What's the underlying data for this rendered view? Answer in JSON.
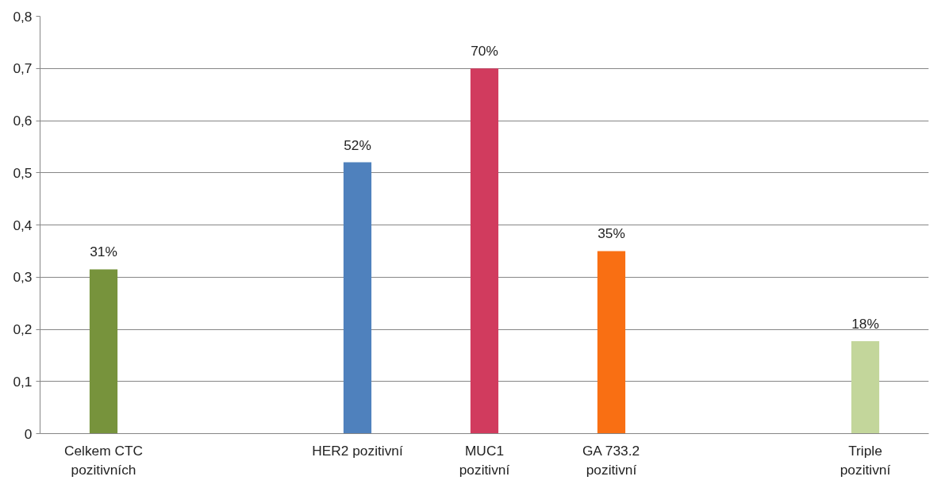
{
  "chart_data": {
    "type": "bar",
    "categories": [
      "Celkem CTC\npozitivních",
      null,
      "HER2 pozitivní",
      "MUC1\npozitivní",
      "GA 733.2\npozitivní",
      null,
      "Triple\npozitivní"
    ],
    "values": [
      0.315,
      null,
      0.52,
      0.7,
      0.35,
      null,
      0.177
    ],
    "colors": [
      "#77933c",
      "#4f81bd",
      "#4f81bd",
      "#d13b5e",
      "#f96f13",
      "#f96f13",
      "#c3d69b"
    ],
    "value_labels": [
      "31%",
      null,
      "52%",
      "70%",
      "35%",
      null,
      "18%"
    ],
    "ylim": [
      0,
      0.8
    ],
    "yticks": [
      {
        "value": 0,
        "label": "0"
      },
      {
        "value": 0.1,
        "label": "0,1"
      },
      {
        "value": 0.2,
        "label": "0,2"
      },
      {
        "value": 0.3,
        "label": "0,3"
      },
      {
        "value": 0.4,
        "label": "0,4"
      },
      {
        "value": 0.5,
        "label": "0,5"
      },
      {
        "value": 0.6,
        "label": "0,6"
      },
      {
        "value": 0.7,
        "label": "0,7"
      },
      {
        "value": 0.8,
        "label": "0,8"
      }
    ],
    "grid": "y"
  }
}
